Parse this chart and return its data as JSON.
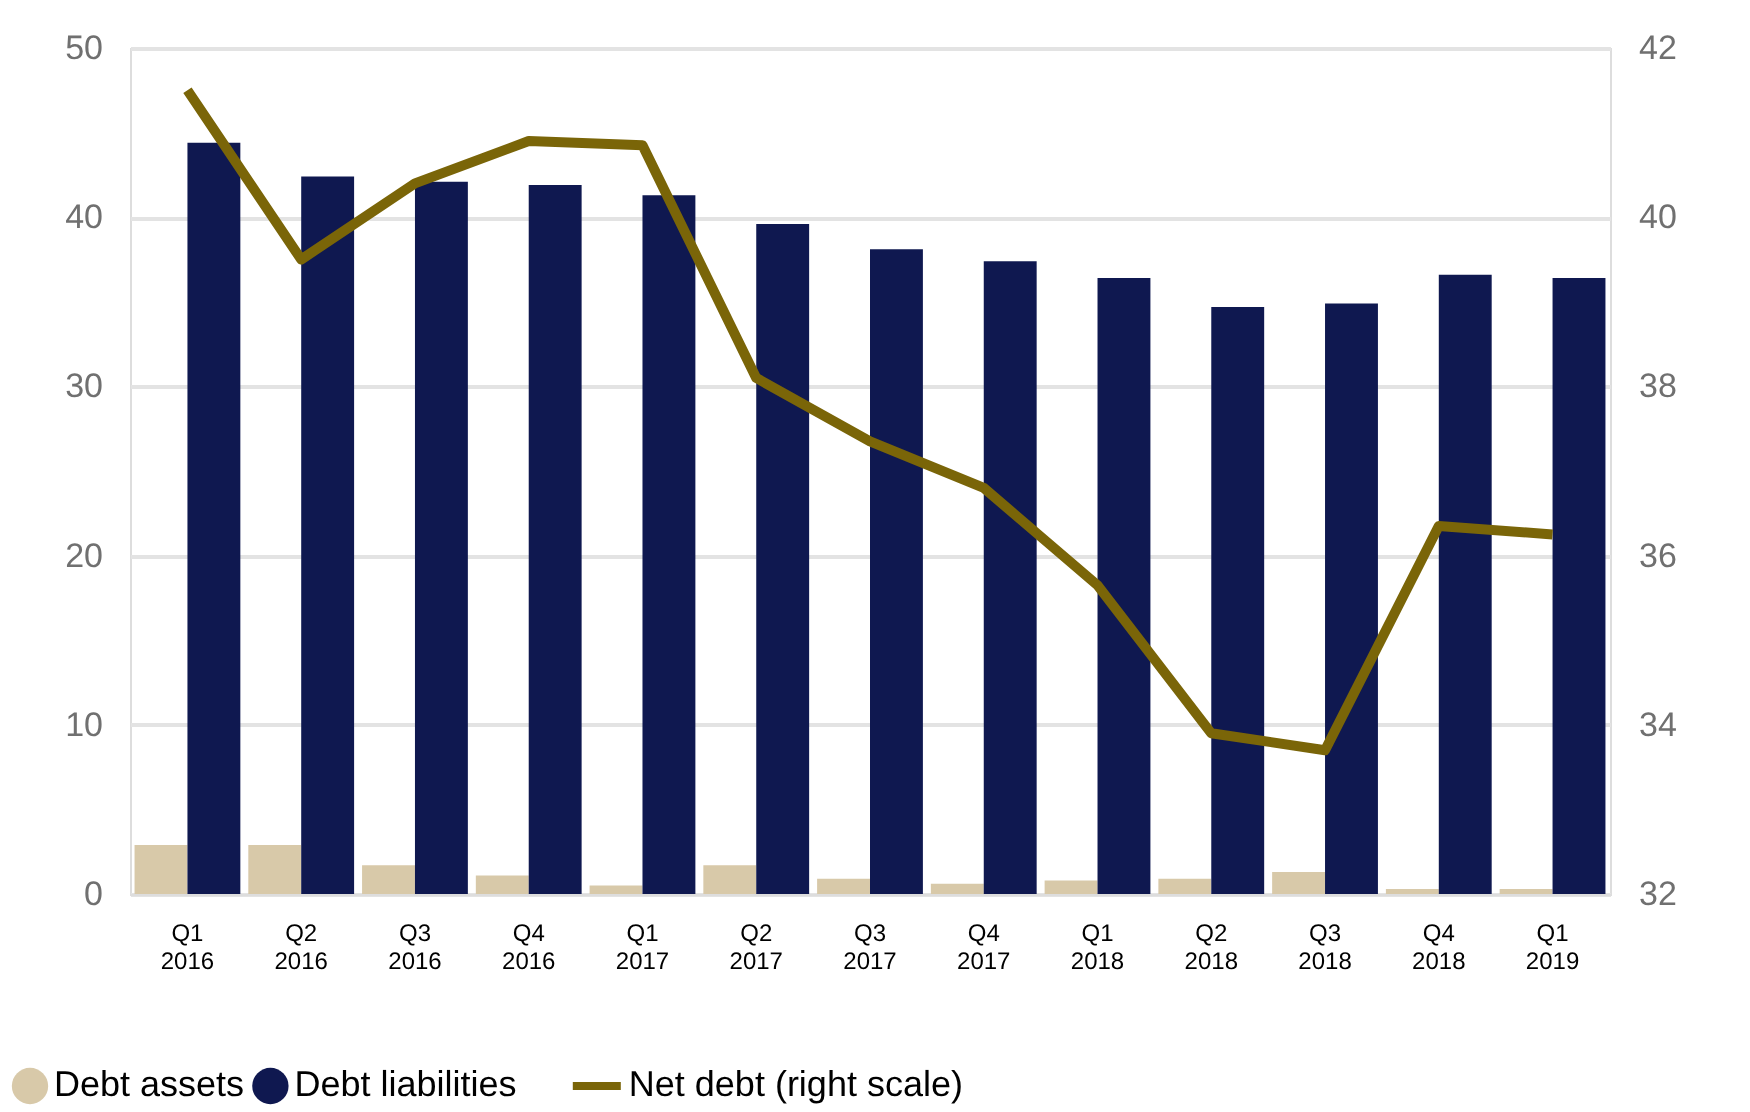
{
  "chart_data": {
    "type": "bar",
    "categories": [
      "Q1\n2016",
      "Q2\n2016",
      "Q3\n2016",
      "Q4\n2016",
      "Q1\n2017",
      "Q2\n2017",
      "Q3\n2017",
      "Q4\n2017",
      "Q1\n2018",
      "Q2\n2018",
      "Q3\n2018",
      "Q4\n2018",
      "Q1\n2019"
    ],
    "series": [
      {
        "name": "Debt assets",
        "color": "#d8c9a9",
        "values": [
          2.9,
          2.9,
          1.7,
          1.1,
          0.5,
          1.7,
          0.9,
          0.6,
          0.8,
          0.9,
          1.3,
          0.3,
          0.3
        ]
      },
      {
        "name": "Debt liabilities",
        "color": "#0f1850",
        "values": [
          44.4,
          42.4,
          42.1,
          41.9,
          41.3,
          39.6,
          38.1,
          37.4,
          36.4,
          34.7,
          34.9,
          36.6,
          36.4
        ]
      },
      {
        "name": "Net debt (right scale)",
        "color": "#7a6508",
        "type": "line",
        "axis": "y2",
        "values": [
          41.5,
          39.5,
          40.4,
          40.9,
          40.85,
          38.1,
          37.35,
          36.8,
          35.65,
          33.9,
          33.7,
          36.35,
          36.25
        ]
      }
    ],
    "ylim": [
      0,
      50
    ],
    "yticks": [
      0,
      10,
      20,
      30,
      40,
      50
    ],
    "y2lim": [
      32,
      42
    ],
    "y2ticks": [
      32,
      34,
      36,
      38,
      40,
      42
    ],
    "grid": "y",
    "legend": "bottom left",
    "line_style": "solid",
    "marker": "none"
  }
}
